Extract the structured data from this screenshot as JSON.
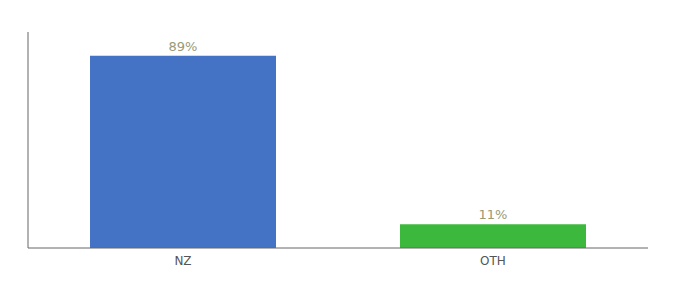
{
  "chart_data": {
    "type": "bar",
    "categories": [
      "NZ",
      "OTH"
    ],
    "values": [
      89,
      11
    ],
    "value_labels": [
      "89%",
      "11%"
    ],
    "data_labels": true,
    "colors": [
      "#4472c4",
      "#3cb83c"
    ],
    "ylim": [
      0,
      100
    ],
    "grid": false,
    "tick_labels": "x"
  }
}
